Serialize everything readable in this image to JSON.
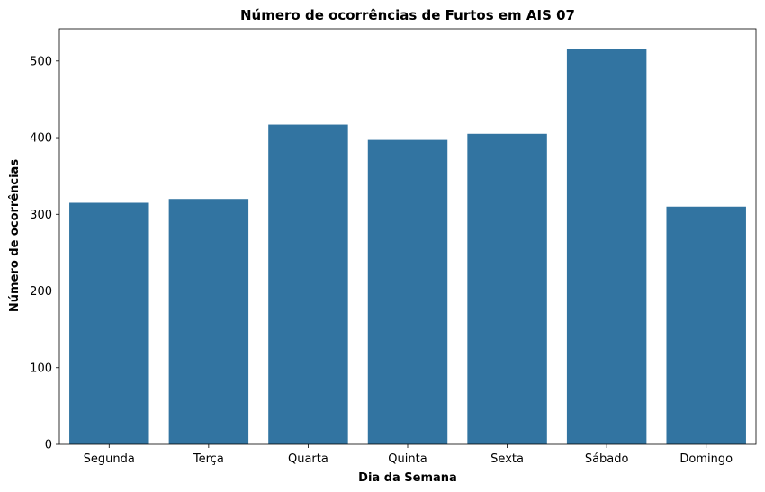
{
  "chart_data": {
    "type": "bar",
    "title": "Número de ocorrências de Furtos em AIS 07",
    "xlabel": "Dia da Semana",
    "ylabel": "Número de ocorrências",
    "categories": [
      "Segunda",
      "Terça",
      "Quarta",
      "Quinta",
      "Sexta",
      "Sábado",
      "Domingo"
    ],
    "values": [
      315,
      320,
      417,
      397,
      405,
      516,
      310
    ],
    "ylim": [
      0,
      542
    ],
    "yticks": [
      0,
      100,
      200,
      300,
      400,
      500
    ],
    "grid": false,
    "legend": "none",
    "bar_color": "#3274a1"
  }
}
